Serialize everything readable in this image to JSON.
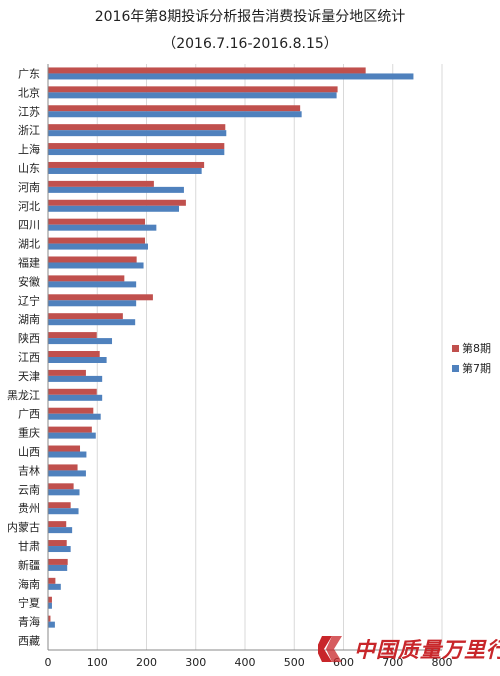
{
  "chart_data": {
    "type": "bar",
    "orientation": "horizontal",
    "title": "2016年第8期投诉分析报告消费投诉量分地区统计",
    "subtitle": "（2016.7.16-2016.8.15）",
    "xlabel": "",
    "ylabel": "",
    "xlim": [
      0,
      800
    ],
    "xticks": [
      0,
      100,
      200,
      300,
      400,
      500,
      600,
      700,
      800
    ],
    "grid": true,
    "legend_position": "right",
    "categories": [
      "广东",
      "北京",
      "江苏",
      "浙江",
      "上海",
      "山东",
      "河南",
      "河北",
      "四川",
      "湖北",
      "福建",
      "安徽",
      "辽宁",
      "湖南",
      "陕西",
      "江西",
      "天津",
      "黑龙江",
      "广西",
      "重庆",
      "山西",
      "吉林",
      "云南",
      "贵州",
      "内蒙古",
      "甘肃",
      "新疆",
      "海南",
      "宁夏",
      "青海",
      "西藏"
    ],
    "series": [
      {
        "name": "第8期",
        "color": "#c0504d",
        "values": [
          645,
          588,
          512,
          360,
          358,
          317,
          215,
          280,
          197,
          197,
          180,
          155,
          213,
          152,
          99,
          105,
          77,
          99,
          92,
          89,
          65,
          60,
          52,
          46,
          37,
          38,
          40,
          15,
          8,
          5,
          0
        ]
      },
      {
        "name": "第7期",
        "color": "#4f81bd",
        "values": [
          742,
          586,
          515,
          362,
          358,
          312,
          276,
          266,
          220,
          203,
          194,
          179,
          179,
          177,
          130,
          119,
          110,
          110,
          107,
          97,
          78,
          77,
          64,
          62,
          49,
          46,
          39,
          26,
          8,
          14,
          0
        ]
      }
    ]
  },
  "watermark": {
    "text": "中国质量万里行",
    "color": "#c8262a"
  }
}
